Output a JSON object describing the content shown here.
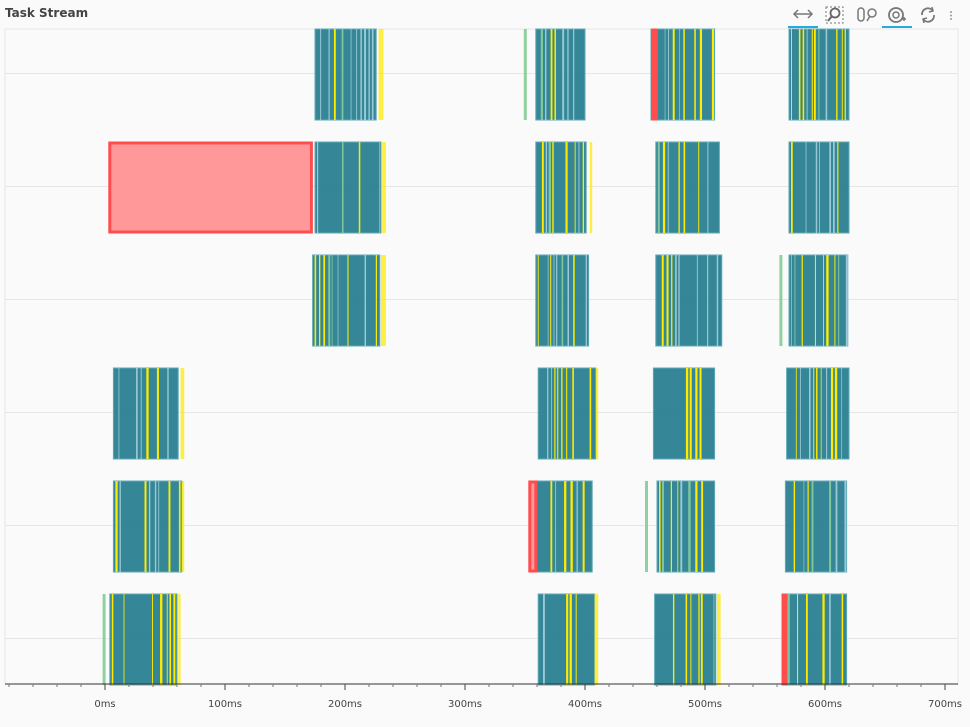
{
  "title": "Task Stream",
  "toolbar": [
    {
      "name": "xpan-tool-icon",
      "active": true
    },
    {
      "name": "box-zoom-tool-icon",
      "active": false
    },
    {
      "name": "reset-tool-icon-pair",
      "active": false
    },
    {
      "name": "wheel-zoom-tool-icon",
      "active": true
    },
    {
      "name": "refresh-icon",
      "active": false
    },
    {
      "name": "more-menu-icon",
      "active": false
    }
  ],
  "colors": {
    "compute": "#1f7a8c",
    "transfer": "#ffea00",
    "deserialize": "#8fd19e",
    "error": "#ff4d4d",
    "error_fill": "#ff9999"
  },
  "chart_data": {
    "type": "timeline",
    "title": "Task Stream",
    "xlim": [
      -82,
      712
    ],
    "x_ticks": [
      0,
      100,
      200,
      300,
      400,
      500,
      600,
      700
    ],
    "x_tick_labels": [
      "0ms",
      "100ms",
      "200ms",
      "300ms",
      "400ms",
      "500ms",
      "600ms",
      "700ms"
    ],
    "x_unit": "ms",
    "lanes": 6,
    "grid": true,
    "lane_groups": [
      [
        [
          175,
          226
        ],
        [
          359,
          400
        ],
        [
          455,
          508
        ],
        [
          570,
          620
        ]
      ],
      [
        [
          175,
          230
        ],
        [
          359,
          401
        ],
        [
          459,
          512
        ],
        [
          570,
          620
        ]
      ],
      [
        [
          173,
          229
        ],
        [
          359,
          403
        ],
        [
          459,
          514
        ],
        [
          570,
          619
        ]
      ],
      [
        [
          7,
          61
        ],
        [
          361,
          409
        ],
        [
          457,
          508
        ],
        [
          568,
          620
        ]
      ],
      [
        [
          7,
          64
        ],
        [
          358,
          406
        ],
        [
          460,
          508
        ],
        [
          567,
          618
        ]
      ],
      [
        [
          4,
          60
        ],
        [
          361,
          408
        ],
        [
          458,
          509
        ],
        [
          567,
          618
        ]
      ]
    ],
    "deserialize_marks": [
      [
        0,
        349
      ],
      [
        4,
        450
      ],
      [
        5,
        -2
      ],
      [
        2,
        562
      ]
    ],
    "error_tasks": [
      {
        "lane": 1,
        "start": 4,
        "end": 172
      },
      {
        "lane": 0,
        "start": 457,
        "end": 459
      },
      {
        "lane": 4,
        "start": 354,
        "end": 359
      },
      {
        "lane": 5,
        "start": 565,
        "end": 567
      }
    ],
    "transfer_tails": [
      [
        [
          228,
          232
        ]
      ],
      [
        [
          231,
          234
        ],
        [
          404,
          406
        ]
      ],
      [
        [
          230,
          234
        ]
      ],
      [
        [
          63,
          66
        ],
        [
          409,
          411
        ]
      ],
      [
        [
          64,
          66
        ]
      ],
      [
        [
          61,
          63
        ],
        [
          408,
          411
        ],
        [
          510,
          513
        ]
      ]
    ]
  }
}
